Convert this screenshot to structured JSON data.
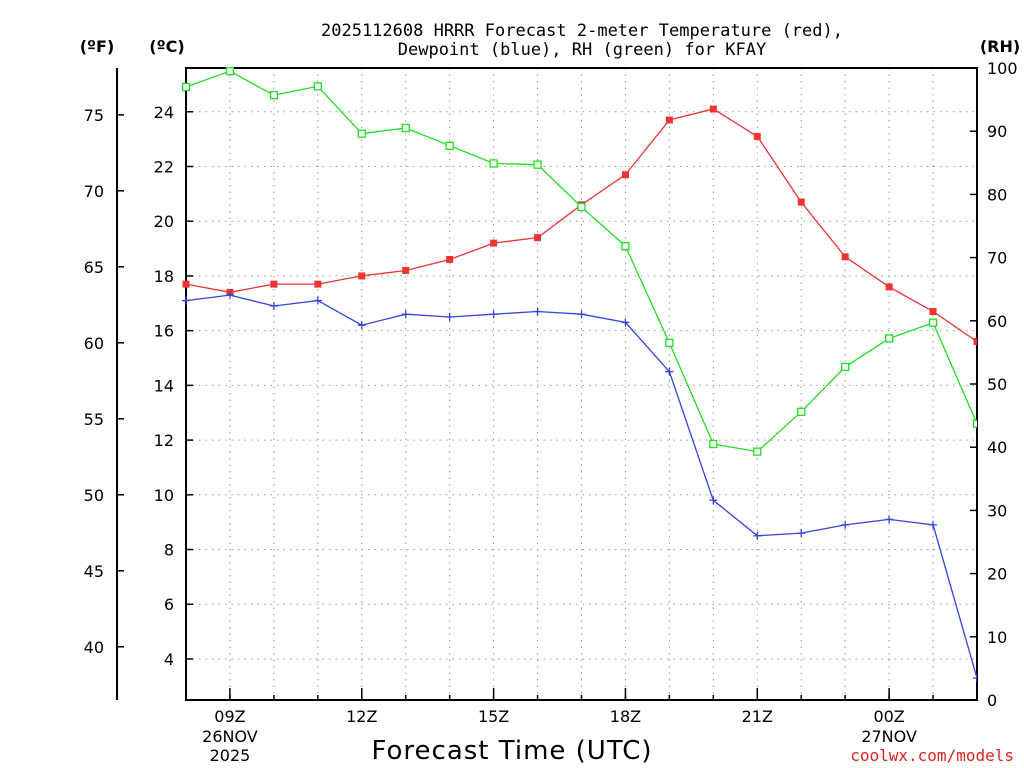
{
  "chart_data": {
    "type": "line",
    "title_line1": "2025112608 HRRR Forecast 2-meter Temperature (red),",
    "title_line2": "Dewpoint (blue), RH (green) for KFAY",
    "xlabel": "Forecast Time (UTC)",
    "watermark": "coolwx.com/models",
    "axis_labels": {
      "f": "(ºF)",
      "c": "(ºC)",
      "rh": "(RH)"
    },
    "x": [
      8,
      9,
      10,
      11,
      12,
      13,
      14,
      15,
      16,
      17,
      18,
      19,
      20,
      21,
      22,
      23,
      24,
      25,
      26
    ],
    "xlim": [
      8,
      26
    ],
    "ylim_c": [
      2.5,
      25.6
    ],
    "ylim_rh": [
      0,
      100
    ],
    "x_ticks": [
      {
        "x": 9,
        "label": "09Z",
        "line2": "26NOV",
        "line3": "2025"
      },
      {
        "x": 12,
        "label": "12Z",
        "line2": "",
        "line3": ""
      },
      {
        "x": 15,
        "label": "15Z",
        "line2": "",
        "line3": ""
      },
      {
        "x": 18,
        "label": "18Z",
        "line2": "",
        "line3": ""
      },
      {
        "x": 21,
        "label": "21Z",
        "line2": "",
        "line3": ""
      },
      {
        "x": 24,
        "label": "00Z",
        "line2": "27NOV",
        "line3": ""
      }
    ],
    "c_ticks": [
      "4",
      "6",
      "8",
      "10",
      "12",
      "14",
      "16",
      "18",
      "20",
      "22",
      "24"
    ],
    "f_ticks": [
      "40",
      "45",
      "50",
      "55",
      "60",
      "65",
      "70",
      "75"
    ],
    "rh_ticks": [
      "0",
      "10",
      "20",
      "30",
      "40",
      "50",
      "60",
      "70",
      "80",
      "90",
      "100"
    ],
    "series": [
      {
        "name": "Temperature",
        "color": "#ee3333",
        "marker": "filled-square",
        "axis": "c",
        "values": [
          17.7,
          17.4,
          17.7,
          17.7,
          18.0,
          18.2,
          18.6,
          19.2,
          19.4,
          20.6,
          21.7,
          23.7,
          24.1,
          23.1,
          20.7,
          18.7,
          17.6,
          16.7,
          15.6
        ]
      },
      {
        "name": "Dewpoint",
        "color": "#3344dd",
        "marker": "plus",
        "axis": "c",
        "values": [
          17.1,
          17.3,
          16.9,
          17.1,
          16.2,
          16.6,
          16.5,
          16.6,
          16.7,
          16.6,
          16.3,
          14.5,
          9.8,
          8.5,
          8.6,
          8.9,
          9.1,
          8.9,
          3.3
        ]
      },
      {
        "name": "RH",
        "color": "#22dd22",
        "marker": "open-square",
        "axis": "rh",
        "values": [
          97,
          99.5,
          95.7,
          97.1,
          89.6,
          90.5,
          87.7,
          84.9,
          84.7,
          78,
          71.8,
          56.5,
          40.5,
          39.3,
          45.6,
          52.7,
          57.2,
          59.7,
          43.7
        ]
      }
    ]
  }
}
